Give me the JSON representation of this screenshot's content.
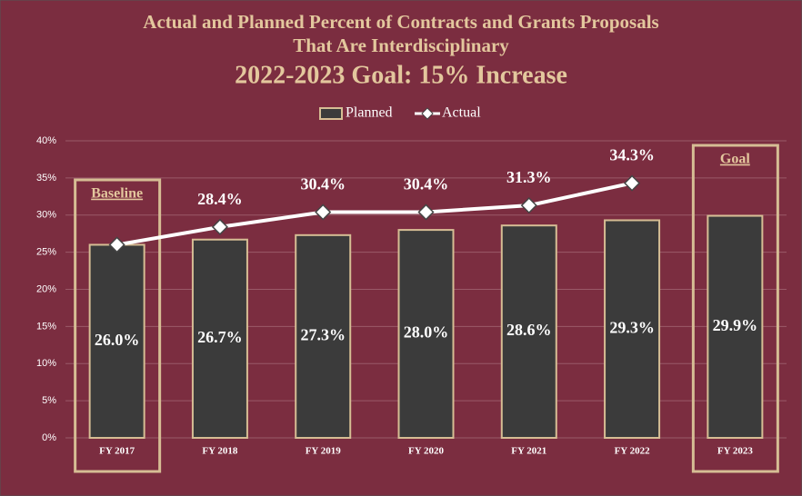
{
  "chart_data": {
    "type": "bar_line",
    "title_lines": [
      "Actual and Planned Percent of Contracts and Grants Proposals",
      "That Are Interdisciplinary"
    ],
    "subtitle": "2022-2023 Goal: 15% Increase",
    "categories": [
      "FY 2017",
      "FY 2018",
      "FY 2019",
      "FY 2020",
      "FY 2021",
      "FY 2022",
      "FY 2023"
    ],
    "series": [
      {
        "name": "Planned",
        "type": "bar",
        "color": "#3b3b3b",
        "border": "#d6bd94",
        "values": [
          26.0,
          26.7,
          27.3,
          28.0,
          28.6,
          29.3,
          29.9
        ],
        "value_labels": [
          "26.0%",
          "26.7%",
          "27.3%",
          "28.0%",
          "28.6%",
          "29.3%",
          "29.9%"
        ]
      },
      {
        "name": "Actual",
        "type": "line",
        "color": "#ffffff",
        "values": [
          26.0,
          28.4,
          30.4,
          30.4,
          31.3,
          34.3,
          null
        ],
        "value_labels": [
          null,
          "28.4%",
          "30.4%",
          "30.4%",
          "31.3%",
          "34.3%",
          null
        ]
      }
    ],
    "ylim": [
      0,
      40
    ],
    "yticks": [
      {
        "value": 0,
        "label": "0%"
      },
      {
        "value": 5,
        "label": "5%"
      },
      {
        "value": 10,
        "label": "10%"
      },
      {
        "value": 15,
        "label": "15%"
      },
      {
        "value": 20,
        "label": "20%"
      },
      {
        "value": 25,
        "label": "25%"
      },
      {
        "value": 30,
        "label": "30%"
      },
      {
        "value": 35,
        "label": "35%"
      },
      {
        "value": 40,
        "label": "40%"
      }
    ],
    "grid": true,
    "legend": "top",
    "annotations": [
      {
        "text": "Baseline",
        "category": "FY 2017"
      },
      {
        "text": "Goal",
        "category": "FY 2023"
      }
    ]
  }
}
